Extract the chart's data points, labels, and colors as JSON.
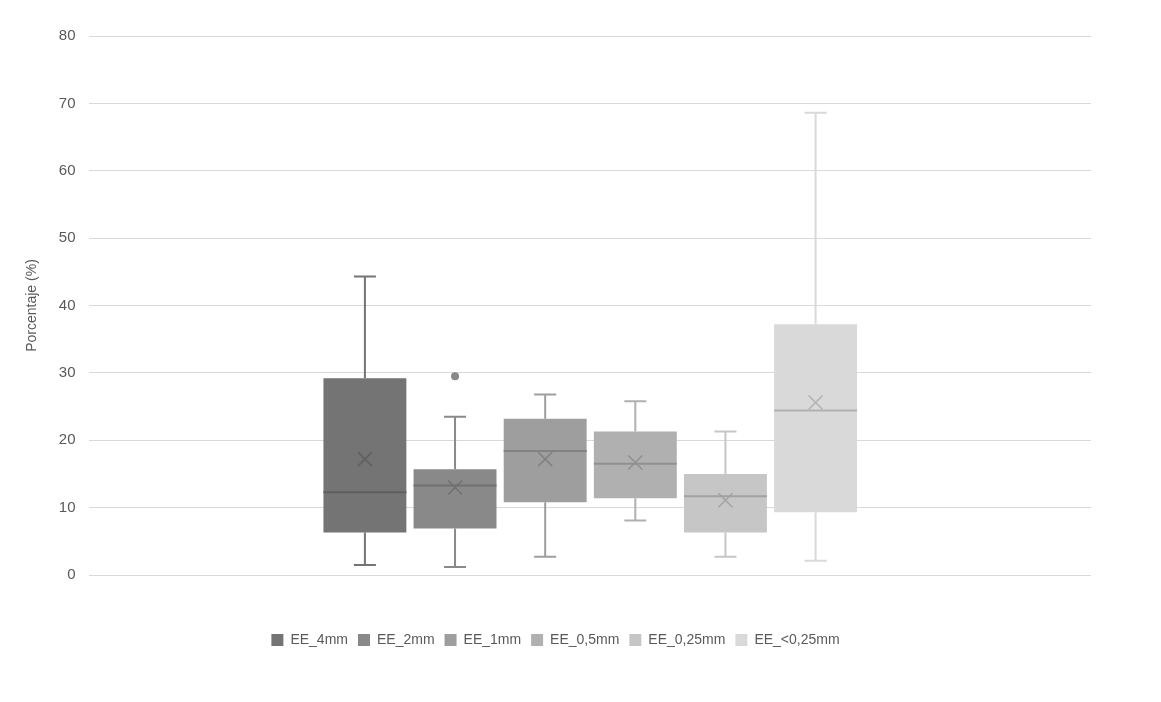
{
  "chart_data": {
    "type": "box",
    "ylabel": "Porcentaje (%)",
    "categories": [
      null
    ],
    "ylim": [
      0,
      80
    ],
    "yticks": [
      0,
      10,
      20,
      30,
      40,
      50,
      60,
      70,
      80
    ],
    "grid": "y",
    "legend": "bottom",
    "tick_labels": "y",
    "marker": "cross",
    "series": [
      {
        "name": "EE_4mm",
        "color": "#747474",
        "boxes": [
          {
            "low": 1.5,
            "q1": 6.3,
            "median": 12.3,
            "q3": 29.2,
            "high": 44.3,
            "mean": 17.2
          }
        ]
      },
      {
        "name": "EE_2mm",
        "color": "#898989",
        "boxes": [
          {
            "low": 1.2,
            "q1": 6.9,
            "median": 13.3,
            "q3": 15.7,
            "high": 23.5,
            "mean": 13.0,
            "outliers": [
              29.5
            ]
          }
        ]
      },
      {
        "name": "EE_1mm",
        "color": "#9e9e9e",
        "boxes": [
          {
            "low": 2.7,
            "q1": 10.8,
            "median": 18.4,
            "q3": 23.2,
            "high": 26.8,
            "mean": 17.2
          }
        ]
      },
      {
        "name": "EE_0,5mm",
        "color": "#b0b0b0",
        "boxes": [
          {
            "low": 8.1,
            "q1": 11.4,
            "median": 16.5,
            "q3": 21.3,
            "high": 25.8,
            "mean": 16.7
          }
        ]
      },
      {
        "name": "EE_0,25mm",
        "color": "#c6c6c6",
        "boxes": [
          {
            "low": 2.7,
            "q1": 6.3,
            "median": 11.7,
            "q3": 15.0,
            "high": 21.3,
            "mean": 11.1
          }
        ]
      },
      {
        "name": "EE_<0,25mm",
        "color": "#d9d9d9",
        "boxes": [
          {
            "low": 2.1,
            "q1": 9.3,
            "median": 24.4,
            "q3": 37.2,
            "high": 68.6,
            "mean": 25.6
          }
        ]
      }
    ]
  }
}
